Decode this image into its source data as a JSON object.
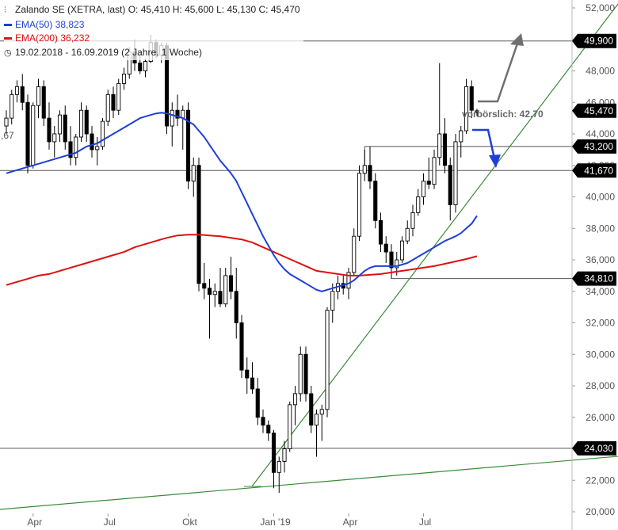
{
  "legend": {
    "title_line": "Zalando SE (XETRA, last)  O: 45,410  H: 45,600  L: 45,130  C: 45,470",
    "ema50_label": "EMA(50)",
    "ema50_value": "38,823",
    "ema200_label": "EMA(200)",
    "ema200_value": "36,232",
    "range_line": "19.02.2018 - 16.09.2019  (2 Jahre, 1 Woche)"
  },
  "icons": {
    "chart": "candlestick-icon",
    "clock": "clock-icon"
  },
  "colors": {
    "ema50": "#1f3fd6",
    "ema200": "#e01010",
    "trend": "#3a8a3a",
    "arrow_up": "#707070",
    "arrow_down": "#1f3fd6",
    "level_box": "#000000",
    "hline": "#555555"
  },
  "chart_data": {
    "type": "candlestick",
    "title": "Zalando SE (XETRA, last)",
    "ylim": [
      20,
      52
    ],
    "y_ticks": [
      "20,000",
      "22,000",
      "24,000",
      "26,000",
      "28,000",
      "30,000",
      "32,000",
      "34,000",
      "36,000",
      "38,000",
      "40,000",
      "42,000",
      "44,000",
      "46,000",
      "48,000",
      "50,000",
      "52,000"
    ],
    "x_ticks": [
      "Apr",
      "Jul",
      "Okt",
      "Jan '19",
      "Apr",
      "Jul"
    ],
    "levels": [
      {
        "value": 49.9,
        "label": "49,900"
      },
      {
        "value": 43.2,
        "label": "43,200"
      },
      {
        "value": 41.67,
        "label": "41,670"
      },
      {
        "value": 34.81,
        "label": "34,810"
      },
      {
        "value": 24.03,
        "label": "24,030"
      }
    ],
    "last": {
      "value": 45.47,
      "label": "45,470"
    },
    "left_cut_label": ",67",
    "annotation": "vorbörslich: 42,70",
    "ohlc": [
      [
        44.5,
        45.5,
        44.0,
        45.0
      ],
      [
        45.0,
        46.8,
        44.6,
        46.5
      ],
      [
        46.5,
        47.4,
        46.0,
        47.0
      ],
      [
        47.0,
        47.8,
        45.5,
        46.0
      ],
      [
        46.0,
        46.5,
        41.5,
        42.0
      ],
      [
        42.0,
        46.0,
        41.8,
        45.8
      ],
      [
        45.8,
        47.5,
        45.0,
        47.0
      ],
      [
        47.0,
        47.4,
        44.5,
        45.0
      ],
      [
        45.0,
        46.0,
        43.0,
        43.5
      ],
      [
        43.5,
        44.5,
        42.5,
        44.0
      ],
      [
        44.0,
        45.5,
        43.5,
        45.2
      ],
      [
        45.2,
        45.8,
        43.0,
        43.5
      ],
      [
        43.5,
        44.5,
        42.0,
        42.5
      ],
      [
        42.5,
        44.0,
        42.0,
        43.8
      ],
      [
        43.8,
        46.0,
        43.5,
        45.5
      ],
      [
        45.5,
        45.8,
        43.5,
        44.0
      ],
      [
        44.0,
        44.5,
        42.5,
        43.0
      ],
      [
        43.0,
        43.8,
        42.0,
        43.2
      ],
      [
        43.2,
        45.0,
        43.0,
        44.8
      ],
      [
        44.8,
        46.8,
        44.5,
        46.5
      ],
      [
        46.5,
        47.0,
        45.0,
        45.5
      ],
      [
        45.5,
        47.5,
        45.2,
        47.2
      ],
      [
        47.2,
        48.2,
        46.8,
        47.8
      ],
      [
        47.8,
        49.5,
        47.5,
        49.2
      ],
      [
        49.2,
        50.0,
        48.0,
        48.5
      ],
      [
        48.5,
        49.2,
        47.8,
        48.0
      ],
      [
        48.0,
        48.8,
        47.6,
        48.6
      ],
      [
        48.6,
        50.3,
        48.5,
        49.8
      ],
      [
        49.8,
        50.0,
        48.8,
        49.0
      ],
      [
        49.0,
        49.8,
        48.5,
        49.6
      ],
      [
        49.6,
        49.8,
        44.0,
        44.5
      ],
      [
        44.5,
        46.0,
        43.2,
        45.5
      ],
      [
        45.5,
        46.5,
        44.5,
        45.0
      ],
      [
        45.0,
        45.8,
        43.0,
        45.5
      ],
      [
        45.5,
        46.0,
        40.5,
        41.0
      ],
      [
        41.0,
        42.5,
        40.0,
        42.0
      ],
      [
        42.0,
        42.5,
        34.0,
        34.5
      ],
      [
        34.5,
        35.8,
        33.5,
        34.2
      ],
      [
        34.2,
        34.8,
        31.0,
        33.8
      ],
      [
        33.8,
        34.5,
        33.0,
        34.0
      ],
      [
        34.0,
        35.5,
        33.0,
        33.2
      ],
      [
        33.2,
        35.5,
        33.0,
        35.0
      ],
      [
        35.0,
        36.2,
        33.5,
        34.0
      ],
      [
        34.0,
        35.5,
        31.0,
        32.0
      ],
      [
        32.0,
        32.5,
        28.5,
        29.0
      ],
      [
        29.0,
        29.8,
        27.5,
        28.5
      ],
      [
        28.5,
        29.5,
        27.5,
        27.8
      ],
      [
        27.8,
        28.5,
        25.5,
        26.0
      ],
      [
        26.0,
        26.5,
        25.0,
        25.5
      ],
      [
        25.5,
        25.8,
        24.5,
        25.0
      ],
      [
        25.0,
        25.2,
        21.5,
        22.5
      ],
      [
        22.5,
        23.5,
        21.2,
        23.2
      ],
      [
        23.2,
        24.5,
        22.5,
        24.0
      ],
      [
        24.0,
        27.0,
        23.8,
        26.8
      ],
      [
        26.8,
        28.0,
        25.5,
        27.5
      ],
      [
        27.5,
        30.5,
        27.0,
        30.0
      ],
      [
        30.0,
        30.5,
        27.0,
        27.5
      ],
      [
        27.5,
        28.0,
        25.0,
        25.5
      ],
      [
        25.5,
        26.5,
        23.5,
        26.2
      ],
      [
        26.2,
        26.8,
        24.5,
        26.5
      ],
      [
        26.5,
        33.0,
        26.0,
        32.8
      ],
      [
        32.8,
        34.5,
        32.0,
        34.0
      ],
      [
        34.0,
        35.0,
        33.5,
        34.5
      ],
      [
        34.5,
        35.0,
        33.8,
        34.2
      ],
      [
        34.2,
        35.5,
        33.5,
        35.2
      ],
      [
        35.2,
        38.0,
        35.0,
        37.5
      ],
      [
        37.5,
        42.0,
        37.2,
        41.5
      ],
      [
        41.5,
        43.0,
        41.0,
        42.0
      ],
      [
        42.0,
        43.2,
        40.5,
        41.0
      ],
      [
        41.0,
        41.5,
        38.0,
        38.5
      ],
      [
        38.5,
        39.0,
        36.5,
        37.0
      ],
      [
        37.0,
        37.5,
        35.8,
        36.5
      ],
      [
        36.5,
        37.0,
        34.8,
        35.5
      ],
      [
        35.5,
        36.5,
        35.0,
        36.0
      ],
      [
        36.0,
        37.5,
        35.8,
        37.2
      ],
      [
        37.2,
        38.5,
        37.0,
        38.0
      ],
      [
        38.0,
        39.5,
        37.5,
        39.0
      ],
      [
        39.0,
        40.5,
        38.8,
        40.0
      ],
      [
        40.0,
        41.5,
        39.5,
        41.0
      ],
      [
        41.0,
        42.5,
        40.5,
        40.8
      ],
      [
        40.8,
        43.0,
        40.5,
        42.5
      ],
      [
        42.5,
        48.5,
        42.0,
        44.0
      ],
      [
        44.0,
        45.0,
        41.5,
        42.0
      ],
      [
        42.0,
        42.5,
        38.5,
        39.5
      ],
      [
        39.5,
        44.0,
        39.0,
        43.5
      ],
      [
        43.5,
        44.5,
        42.5,
        44.2
      ],
      [
        44.2,
        47.5,
        44.0,
        47.0
      ],
      [
        47.0,
        47.4,
        45.0,
        45.5
      ],
      [
        45.41,
        45.6,
        45.13,
        45.47
      ]
    ],
    "ema50": [
      [
        0,
        41.5
      ],
      [
        1,
        41.6
      ],
      [
        2,
        41.7
      ],
      [
        3,
        41.8
      ],
      [
        4,
        41.9
      ],
      [
        5,
        42.0
      ],
      [
        6,
        42.1
      ],
      [
        7,
        42.2
      ],
      [
        8,
        42.3
      ],
      [
        9,
        42.4
      ],
      [
        10,
        42.5
      ],
      [
        11,
        42.6
      ],
      [
        12,
        42.7
      ],
      [
        13,
        42.8
      ],
      [
        14,
        43.0
      ],
      [
        15,
        43.2
      ],
      [
        16,
        43.3
      ],
      [
        17,
        43.4
      ],
      [
        18,
        43.6
      ],
      [
        19,
        43.8
      ],
      [
        20,
        44.0
      ],
      [
        21,
        44.2
      ],
      [
        22,
        44.4
      ],
      [
        23,
        44.6
      ],
      [
        24,
        44.8
      ],
      [
        25,
        45.0
      ],
      [
        26,
        45.1
      ],
      [
        27,
        45.2
      ],
      [
        28,
        45.3
      ],
      [
        29,
        45.35
      ],
      [
        30,
        45.3
      ],
      [
        31,
        45.2
      ],
      [
        32,
        45.1
      ],
      [
        33,
        45.0
      ],
      [
        34,
        44.8
      ],
      [
        35,
        44.6
      ],
      [
        36,
        44.2
      ],
      [
        37,
        43.8
      ],
      [
        38,
        43.3
      ],
      [
        39,
        42.8
      ],
      [
        40,
        42.3
      ],
      [
        41,
        41.9
      ],
      [
        42,
        41.5
      ],
      [
        43,
        41.0
      ],
      [
        44,
        40.3
      ],
      [
        45,
        39.6
      ],
      [
        46,
        38.9
      ],
      [
        47,
        38.2
      ],
      [
        48,
        37.5
      ],
      [
        49,
        36.9
      ],
      [
        50,
        36.3
      ],
      [
        51,
        35.8
      ],
      [
        52,
        35.4
      ],
      [
        53,
        35.1
      ],
      [
        54,
        34.9
      ],
      [
        55,
        34.7
      ],
      [
        56,
        34.5
      ],
      [
        57,
        34.3
      ],
      [
        58,
        34.1
      ],
      [
        59,
        34.0
      ],
      [
        60,
        34.1
      ],
      [
        61,
        34.2
      ],
      [
        62,
        34.3
      ],
      [
        63,
        34.4
      ],
      [
        64,
        34.5
      ],
      [
        65,
        34.7
      ],
      [
        66,
        35.0
      ],
      [
        67,
        35.3
      ],
      [
        68,
        35.5
      ],
      [
        69,
        35.6
      ],
      [
        70,
        35.6
      ],
      [
        71,
        35.6
      ],
      [
        72,
        35.6
      ],
      [
        73,
        35.6
      ],
      [
        74,
        35.7
      ],
      [
        75,
        35.8
      ],
      [
        76,
        36.0
      ],
      [
        77,
        36.2
      ],
      [
        78,
        36.4
      ],
      [
        79,
        36.6
      ],
      [
        80,
        36.8
      ],
      [
        81,
        37.0
      ],
      [
        82,
        37.2
      ],
      [
        83,
        37.35
      ],
      [
        84,
        37.5
      ],
      [
        85,
        37.7
      ],
      [
        86,
        38.0
      ],
      [
        87,
        38.3
      ],
      [
        88,
        38.8
      ]
    ],
    "ema200": [
      [
        0,
        34.4
      ],
      [
        2,
        34.6
      ],
      [
        4,
        34.8
      ],
      [
        6,
        35.0
      ],
      [
        8,
        35.1
      ],
      [
        10,
        35.3
      ],
      [
        12,
        35.5
      ],
      [
        14,
        35.7
      ],
      [
        16,
        35.9
      ],
      [
        18,
        36.1
      ],
      [
        20,
        36.3
      ],
      [
        22,
        36.5
      ],
      [
        24,
        36.8
      ],
      [
        26,
        37.0
      ],
      [
        28,
        37.2
      ],
      [
        30,
        37.4
      ],
      [
        32,
        37.55
      ],
      [
        34,
        37.6
      ],
      [
        36,
        37.6
      ],
      [
        38,
        37.55
      ],
      [
        40,
        37.5
      ],
      [
        42,
        37.4
      ],
      [
        44,
        37.3
      ],
      [
        46,
        37.1
      ],
      [
        48,
        36.8
      ],
      [
        50,
        36.5
      ],
      [
        52,
        36.2
      ],
      [
        54,
        35.9
      ],
      [
        56,
        35.6
      ],
      [
        58,
        35.3
      ],
      [
        60,
        35.2
      ],
      [
        62,
        35.1
      ],
      [
        64,
        35.0
      ],
      [
        66,
        35.0
      ],
      [
        68,
        35.05
      ],
      [
        70,
        35.1
      ],
      [
        72,
        35.2
      ],
      [
        74,
        35.3
      ],
      [
        76,
        35.4
      ],
      [
        78,
        35.5
      ],
      [
        80,
        35.6
      ],
      [
        82,
        35.75
      ],
      [
        84,
        35.9
      ],
      [
        86,
        36.05
      ],
      [
        88,
        36.23
      ]
    ]
  }
}
